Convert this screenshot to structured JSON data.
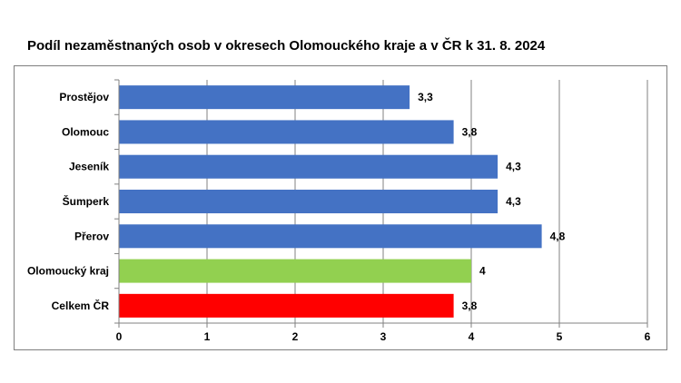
{
  "chart_data": {
    "type": "bar",
    "orientation": "horizontal",
    "title": "Podíl nezaměstnaných osob v okresech Olomouckého kraje a v ČR k 31. 8. 2024",
    "xlabel": "",
    "ylabel": "",
    "categories": [
      "Prostějov",
      "Olomouc",
      "Jeseník",
      "Šumperk",
      "Přerov",
      "Olomoucký kraj",
      "Celkem ČR"
    ],
    "values": [
      3.3,
      3.8,
      4.3,
      4.3,
      4.8,
      4.0,
      3.8
    ],
    "value_labels": [
      "3,3",
      "3,8",
      "4,3",
      "4,3",
      "4,8",
      "4",
      "3,8"
    ],
    "bar_colors": [
      "#4472c4",
      "#4472c4",
      "#4472c4",
      "#4472c4",
      "#4472c4",
      "#92d050",
      "#ff0000"
    ],
    "xlim": [
      0,
      6
    ],
    "x_ticks": [
      "0",
      "1",
      "2",
      "3",
      "4",
      "5",
      "6"
    ],
    "grid": "vertical",
    "legend": "none",
    "axis_color": "#808080",
    "grid_color": "#808080"
  }
}
